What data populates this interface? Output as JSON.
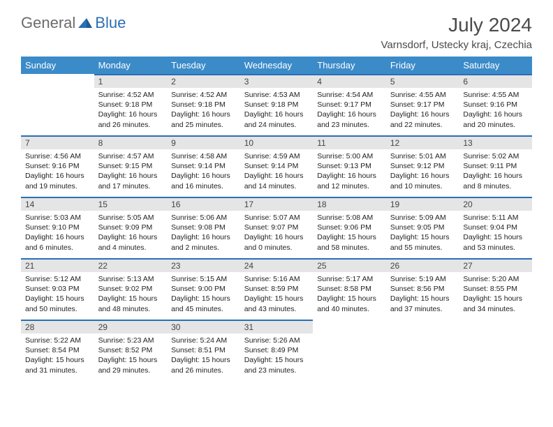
{
  "logo": {
    "word1": "General",
    "word2": "Blue"
  },
  "title": "July 2024",
  "location": "Varnsdorf, Ustecky kraj, Czechia",
  "colors": {
    "header_bg": "#3b8bc9",
    "header_text": "#ffffff",
    "daynum_bg": "#e5e5e5",
    "daynum_border": "#2a6fb5",
    "body_text": "#222222",
    "title_text": "#4a4a4a",
    "logo_gray": "#6b6b6b",
    "logo_blue": "#2a6fb5",
    "page_bg": "#ffffff"
  },
  "fonts": {
    "base_family": "Arial",
    "title_size": 28,
    "location_size": 15,
    "dow_size": 13,
    "cell_size": 10.5
  },
  "days_of_week": [
    "Sunday",
    "Monday",
    "Tuesday",
    "Wednesday",
    "Thursday",
    "Friday",
    "Saturday"
  ],
  "weeks": [
    [
      {
        "num": "",
        "sunrise": "",
        "sunset": "",
        "daylight": ""
      },
      {
        "num": "1",
        "sunrise": "Sunrise: 4:52 AM",
        "sunset": "Sunset: 9:18 PM",
        "daylight": "Daylight: 16 hours and 26 minutes."
      },
      {
        "num": "2",
        "sunrise": "Sunrise: 4:52 AM",
        "sunset": "Sunset: 9:18 PM",
        "daylight": "Daylight: 16 hours and 25 minutes."
      },
      {
        "num": "3",
        "sunrise": "Sunrise: 4:53 AM",
        "sunset": "Sunset: 9:18 PM",
        "daylight": "Daylight: 16 hours and 24 minutes."
      },
      {
        "num": "4",
        "sunrise": "Sunrise: 4:54 AM",
        "sunset": "Sunset: 9:17 PM",
        "daylight": "Daylight: 16 hours and 23 minutes."
      },
      {
        "num": "5",
        "sunrise": "Sunrise: 4:55 AM",
        "sunset": "Sunset: 9:17 PM",
        "daylight": "Daylight: 16 hours and 22 minutes."
      },
      {
        "num": "6",
        "sunrise": "Sunrise: 4:55 AM",
        "sunset": "Sunset: 9:16 PM",
        "daylight": "Daylight: 16 hours and 20 minutes."
      }
    ],
    [
      {
        "num": "7",
        "sunrise": "Sunrise: 4:56 AM",
        "sunset": "Sunset: 9:16 PM",
        "daylight": "Daylight: 16 hours and 19 minutes."
      },
      {
        "num": "8",
        "sunrise": "Sunrise: 4:57 AM",
        "sunset": "Sunset: 9:15 PM",
        "daylight": "Daylight: 16 hours and 17 minutes."
      },
      {
        "num": "9",
        "sunrise": "Sunrise: 4:58 AM",
        "sunset": "Sunset: 9:14 PM",
        "daylight": "Daylight: 16 hours and 16 minutes."
      },
      {
        "num": "10",
        "sunrise": "Sunrise: 4:59 AM",
        "sunset": "Sunset: 9:14 PM",
        "daylight": "Daylight: 16 hours and 14 minutes."
      },
      {
        "num": "11",
        "sunrise": "Sunrise: 5:00 AM",
        "sunset": "Sunset: 9:13 PM",
        "daylight": "Daylight: 16 hours and 12 minutes."
      },
      {
        "num": "12",
        "sunrise": "Sunrise: 5:01 AM",
        "sunset": "Sunset: 9:12 PM",
        "daylight": "Daylight: 16 hours and 10 minutes."
      },
      {
        "num": "13",
        "sunrise": "Sunrise: 5:02 AM",
        "sunset": "Sunset: 9:11 PM",
        "daylight": "Daylight: 16 hours and 8 minutes."
      }
    ],
    [
      {
        "num": "14",
        "sunrise": "Sunrise: 5:03 AM",
        "sunset": "Sunset: 9:10 PM",
        "daylight": "Daylight: 16 hours and 6 minutes."
      },
      {
        "num": "15",
        "sunrise": "Sunrise: 5:05 AM",
        "sunset": "Sunset: 9:09 PM",
        "daylight": "Daylight: 16 hours and 4 minutes."
      },
      {
        "num": "16",
        "sunrise": "Sunrise: 5:06 AM",
        "sunset": "Sunset: 9:08 PM",
        "daylight": "Daylight: 16 hours and 2 minutes."
      },
      {
        "num": "17",
        "sunrise": "Sunrise: 5:07 AM",
        "sunset": "Sunset: 9:07 PM",
        "daylight": "Daylight: 16 hours and 0 minutes."
      },
      {
        "num": "18",
        "sunrise": "Sunrise: 5:08 AM",
        "sunset": "Sunset: 9:06 PM",
        "daylight": "Daylight: 15 hours and 58 minutes."
      },
      {
        "num": "19",
        "sunrise": "Sunrise: 5:09 AM",
        "sunset": "Sunset: 9:05 PM",
        "daylight": "Daylight: 15 hours and 55 minutes."
      },
      {
        "num": "20",
        "sunrise": "Sunrise: 5:11 AM",
        "sunset": "Sunset: 9:04 PM",
        "daylight": "Daylight: 15 hours and 53 minutes."
      }
    ],
    [
      {
        "num": "21",
        "sunrise": "Sunrise: 5:12 AM",
        "sunset": "Sunset: 9:03 PM",
        "daylight": "Daylight: 15 hours and 50 minutes."
      },
      {
        "num": "22",
        "sunrise": "Sunrise: 5:13 AM",
        "sunset": "Sunset: 9:02 PM",
        "daylight": "Daylight: 15 hours and 48 minutes."
      },
      {
        "num": "23",
        "sunrise": "Sunrise: 5:15 AM",
        "sunset": "Sunset: 9:00 PM",
        "daylight": "Daylight: 15 hours and 45 minutes."
      },
      {
        "num": "24",
        "sunrise": "Sunrise: 5:16 AM",
        "sunset": "Sunset: 8:59 PM",
        "daylight": "Daylight: 15 hours and 43 minutes."
      },
      {
        "num": "25",
        "sunrise": "Sunrise: 5:17 AM",
        "sunset": "Sunset: 8:58 PM",
        "daylight": "Daylight: 15 hours and 40 minutes."
      },
      {
        "num": "26",
        "sunrise": "Sunrise: 5:19 AM",
        "sunset": "Sunset: 8:56 PM",
        "daylight": "Daylight: 15 hours and 37 minutes."
      },
      {
        "num": "27",
        "sunrise": "Sunrise: 5:20 AM",
        "sunset": "Sunset: 8:55 PM",
        "daylight": "Daylight: 15 hours and 34 minutes."
      }
    ],
    [
      {
        "num": "28",
        "sunrise": "Sunrise: 5:22 AM",
        "sunset": "Sunset: 8:54 PM",
        "daylight": "Daylight: 15 hours and 31 minutes."
      },
      {
        "num": "29",
        "sunrise": "Sunrise: 5:23 AM",
        "sunset": "Sunset: 8:52 PM",
        "daylight": "Daylight: 15 hours and 29 minutes."
      },
      {
        "num": "30",
        "sunrise": "Sunrise: 5:24 AM",
        "sunset": "Sunset: 8:51 PM",
        "daylight": "Daylight: 15 hours and 26 minutes."
      },
      {
        "num": "31",
        "sunrise": "Sunrise: 5:26 AM",
        "sunset": "Sunset: 8:49 PM",
        "daylight": "Daylight: 15 hours and 23 minutes."
      },
      {
        "num": "",
        "sunrise": "",
        "sunset": "",
        "daylight": ""
      },
      {
        "num": "",
        "sunrise": "",
        "sunset": "",
        "daylight": ""
      },
      {
        "num": "",
        "sunrise": "",
        "sunset": "",
        "daylight": ""
      }
    ]
  ]
}
